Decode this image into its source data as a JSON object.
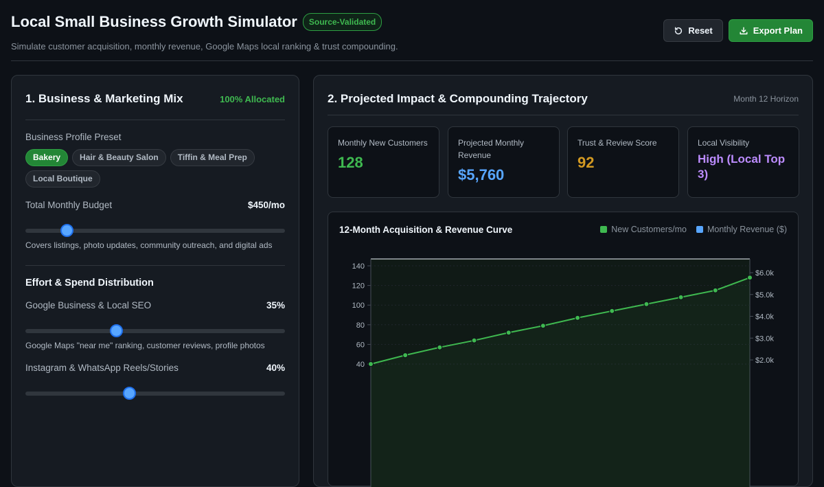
{
  "header": {
    "title": "Local Small Business Growth Simulator",
    "badge": "Source-Validated",
    "subtitle": "Simulate customer acquisition, monthly revenue, Google Maps local ranking & trust compounding.",
    "reset_label": "Reset",
    "export_label": "Export Plan"
  },
  "left": {
    "title": "1. Business & Marketing Mix",
    "allocation": "100% Allocated",
    "preset_label": "Business Profile Preset",
    "presets": [
      "Bakery",
      "Hair & Beauty Salon",
      "Tiffin & Meal Prep",
      "Local Boutique"
    ],
    "selected_preset": "Bakery",
    "budget": {
      "label": "Total Monthly Budget",
      "value": "$450/mo",
      "slider_fraction": 0.16,
      "help": "Covers listings, photo updates, community outreach, and digital ads"
    },
    "distribution_title": "Effort & Spend Distribution",
    "channels": [
      {
        "label": "Google Business & Local SEO",
        "value": "35%",
        "slider_fraction": 0.35,
        "help": "Google Maps \"near me\" ranking, customer reviews, profile photos"
      },
      {
        "label": "Instagram & WhatsApp Reels/Stories",
        "value": "40%",
        "slider_fraction": 0.4
      }
    ]
  },
  "right": {
    "title": "2. Projected Impact & Compounding Trajectory",
    "horizon": "Month 12 Horizon",
    "metrics": [
      {
        "label": "Monthly New Customers",
        "value": "128",
        "color": "#3fb950"
      },
      {
        "label": "Projected Monthly Revenue",
        "value": "$5,760",
        "color": "#58a6ff"
      },
      {
        "label": "Trust & Review Score",
        "value": "92",
        "color": "#d29922"
      },
      {
        "label": "Local Visibility",
        "value": "High (Local Top 3)",
        "color": "#bc8cff"
      }
    ]
  },
  "chart_data": {
    "type": "line",
    "title": "12-Month Acquisition & Revenue Curve",
    "series": [
      {
        "name": "New Customers/mo",
        "color": "#3fb950",
        "x": [
          1,
          2,
          3,
          4,
          5,
          6,
          7,
          8,
          9,
          10,
          11,
          12
        ],
        "values": [
          40,
          49,
          57,
          64,
          72,
          79,
          87,
          94,
          101,
          108,
          115,
          128
        ]
      },
      {
        "name": "Monthly Revenue ($)",
        "color": "#58a6ff",
        "values": []
      }
    ],
    "left_axis": {
      "ticks": [
        "140",
        "120",
        "100",
        "80",
        "60",
        "40"
      ],
      "values": [
        140,
        120,
        100,
        80,
        60,
        40
      ]
    },
    "right_axis": {
      "ticks": [
        "$6.0k",
        "$5.0k",
        "$4.0k",
        "$3.0k",
        "$2.0k"
      ],
      "values": [
        6000,
        5000,
        4000,
        3000,
        2000
      ]
    },
    "grid": true
  }
}
